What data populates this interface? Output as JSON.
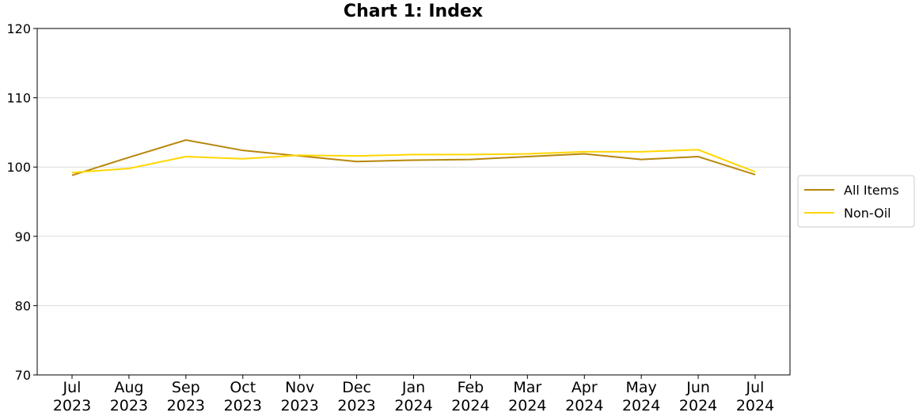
{
  "chart_data": {
    "type": "line",
    "title": "Chart 1: Index",
    "categories": [
      "Jul 2023",
      "Aug 2023",
      "Sep 2023",
      "Oct 2023",
      "Nov 2023",
      "Dec 2023",
      "Jan 2024",
      "Feb 2024",
      "Mar 2024",
      "Apr 2024",
      "May 2024",
      "Jun 2024",
      "Jul 2024"
    ],
    "series": [
      {
        "name": "All Items",
        "color": "#b8860b",
        "values": [
          98.8,
          101.4,
          103.9,
          102.4,
          101.6,
          100.8,
          101.0,
          101.1,
          101.5,
          101.9,
          101.1,
          101.5,
          98.9
        ]
      },
      {
        "name": "Non-Oil",
        "color": "#ffd700",
        "values": [
          99.2,
          99.8,
          101.5,
          101.2,
          101.7,
          101.6,
          101.8,
          101.8,
          101.9,
          102.2,
          102.2,
          102.5,
          99.3
        ]
      }
    ],
    "ylim": [
      70,
      120
    ],
    "yticks": [
      70,
      80,
      90,
      100,
      110,
      120
    ],
    "grid": true,
    "legend": "right"
  }
}
